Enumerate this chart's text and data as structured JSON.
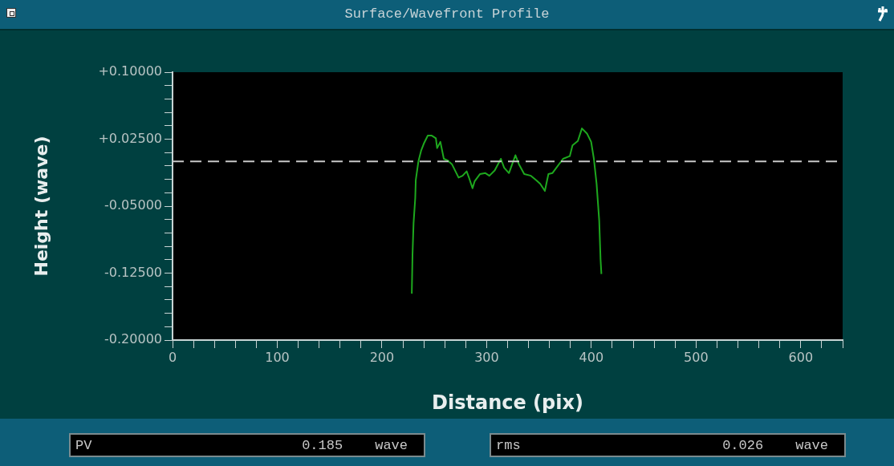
{
  "chart_data": {
    "type": "line",
    "title": "Surface/Wavefront Profile",
    "xlabel": "Distance (pix)",
    "ylabel": "Height (wave)",
    "x": [
      228.5,
      229.2,
      230.2,
      231.8,
      232.3,
      234.8,
      237.4,
      240,
      243.8,
      247.6,
      251.5,
      252.7,
      255.8,
      259.1,
      263,
      266.8,
      273.2,
      277,
      280.9,
      283.4,
      286.5,
      288.6,
      293.7,
      298.8,
      302.6,
      307.7,
      313.6,
      316.7,
      321.3,
      324.4,
      327.5,
      330.8,
      335.9,
      342.3,
      347.4,
      351.2,
      355.6,
      359,
      362.8,
      366.6,
      373,
      379.4,
      382,
      387.1,
      391,
      396,
      399.8,
      402.4,
      405,
      407.5,
      408.8,
      409.6
    ],
    "series": [
      {
        "color": "#1ea81e",
        "values": [
          -0.148,
          -0.104,
          -0.069,
          -0.041,
          -0.021,
          0.0,
          0.012,
          0.02,
          0.029,
          0.029,
          0.026,
          0.015,
          0.022,
          0.003,
          0.001,
          -0.003,
          -0.018,
          -0.016,
          -0.011,
          -0.019,
          -0.03,
          -0.022,
          -0.014,
          -0.013,
          -0.016,
          -0.01,
          0.003,
          -0.007,
          -0.013,
          -0.003,
          0.007,
          -0.003,
          -0.014,
          -0.016,
          -0.021,
          -0.025,
          -0.033,
          -0.014,
          -0.013,
          -0.007,
          0.003,
          0.006,
          0.018,
          0.023,
          0.037,
          0.031,
          0.022,
          0.003,
          -0.025,
          -0.066,
          -0.11,
          -0.126
        ]
      }
    ],
    "xlim": [
      0,
      640
    ],
    "xticks": [
      0,
      {
        "value": 20,
        "label": null
      },
      {
        "value": 40,
        "label": null
      },
      {
        "value": 60,
        "label": null
      },
      {
        "value": 80,
        "label": null
      },
      100,
      {
        "value": 120,
        "label": null
      },
      {
        "value": 140,
        "label": null
      },
      {
        "value": 160,
        "label": null
      },
      {
        "value": 180,
        "label": null
      },
      200,
      {
        "value": 220,
        "label": null
      },
      {
        "value": 240,
        "label": null
      },
      {
        "value": 260,
        "label": null
      },
      {
        "value": 280,
        "label": null
      },
      300,
      {
        "value": 320,
        "label": null
      },
      {
        "value": 340,
        "label": null
      },
      {
        "value": 360,
        "label": null
      },
      {
        "value": 380,
        "label": null
      },
      400,
      {
        "value": 420,
        "label": null
      },
      {
        "value": 440,
        "label": null
      },
      {
        "value": 460,
        "label": null
      },
      {
        "value": 480,
        "label": null
      },
      500,
      {
        "value": 520,
        "label": null
      },
      {
        "value": 540,
        "label": null
      },
      {
        "value": 560,
        "label": null
      },
      {
        "value": 580,
        "label": null
      },
      600,
      {
        "value": 620,
        "label": null
      },
      {
        "value": 640,
        "label": null
      }
    ],
    "ylim": [
      -0.2,
      0.1
    ],
    "yticks": [
      {
        "value": 0.1,
        "label": "+0.10000"
      },
      {
        "value": 0.085,
        "label": null
      },
      {
        "value": 0.07,
        "label": null
      },
      {
        "value": 0.055,
        "label": null
      },
      {
        "value": 0.04,
        "label": null
      },
      {
        "value": 0.025,
        "label": "+0.02500"
      },
      {
        "value": 0.01,
        "label": null
      },
      {
        "value": -0.005,
        "label": null
      },
      {
        "value": -0.02,
        "label": null
      },
      {
        "value": -0.035,
        "label": null
      },
      {
        "value": -0.05,
        "label": "-0.05000"
      },
      {
        "value": -0.065,
        "label": null
      },
      {
        "value": -0.08,
        "label": null
      },
      {
        "value": -0.095,
        "label": null
      },
      {
        "value": -0.11,
        "label": null
      },
      {
        "value": -0.125,
        "label": "-0.12500"
      },
      {
        "value": -0.14,
        "label": null
      },
      {
        "value": -0.155,
        "label": null
      },
      {
        "value": -0.17,
        "label": null
      },
      {
        "value": -0.185,
        "label": null
      },
      {
        "value": -0.2,
        "label": "-0.20000"
      }
    ],
    "ref_lines": [
      {
        "axis": "y",
        "value": 0,
        "color": "#c8c8c8",
        "line_style": "dashed"
      }
    ],
    "annotations": [
      "PV 0.185 wave",
      "rms 0.026 wave"
    ],
    "grid": false,
    "legend": false,
    "marker": "none",
    "line_style": "solid"
  }
}
